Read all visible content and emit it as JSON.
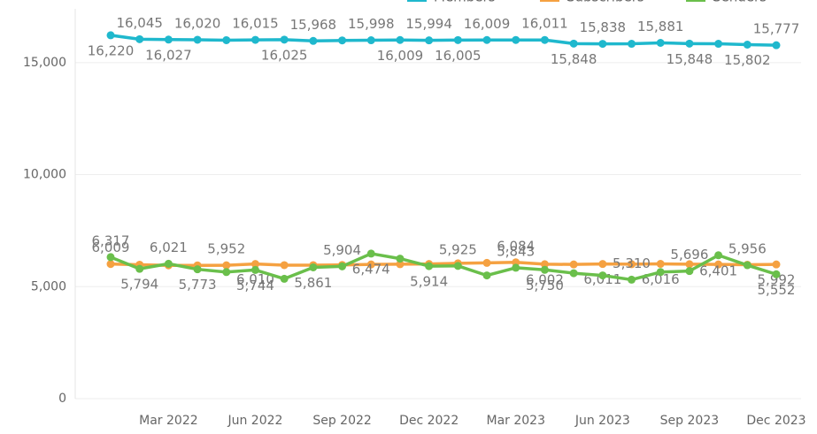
{
  "chart_data": {
    "type": "line",
    "categories": [
      null,
      null,
      "Mar 2022",
      null,
      null,
      "Jun 2022",
      null,
      null,
      "Sep 2022",
      null,
      null,
      "Dec 2022",
      null,
      null,
      "Mar 2023",
      null,
      null,
      "Jun 2023",
      null,
      null,
      "Sep 2023",
      null,
      null,
      "Dec 2023"
    ],
    "series": [
      {
        "name": "Members",
        "color": "#1fb8cd",
        "values": [
          16220,
          16045,
          16027,
          16020,
          16000,
          16015,
          16025,
          15968,
          15990,
          15998,
          16009,
          15994,
          16005,
          16009,
          16010,
          16011,
          15848,
          15838,
          15840,
          15881,
          15848,
          15840,
          15802,
          15777
        ],
        "value_labels": [
          "16,220",
          "16,045",
          "16,027",
          "16,020",
          null,
          "16,015",
          "16,025",
          "15,968",
          null,
          "15,998",
          "16,009",
          "15,994",
          "16,005",
          "16,009",
          null,
          "16,011",
          "15,848",
          "15,838",
          null,
          "15,881",
          "15,848",
          null,
          "15,802",
          "15,777"
        ]
      },
      {
        "name": "Subscribers",
        "color": "#f5a141",
        "values": [
          6009,
          5980,
          5950,
          5950,
          5952,
          6010,
          5960,
          5960,
          5970,
          5990,
          6000,
          6010,
          6040,
          6060,
          6084,
          6002,
          5990,
          6011,
          6000,
          6016,
          6000,
          5990,
          5980,
          5992
        ],
        "value_labels": [
          "6,009",
          null,
          null,
          null,
          "5,952",
          "6,010",
          null,
          null,
          null,
          null,
          null,
          null,
          null,
          null,
          "6,084",
          "6,002",
          null,
          "6,011",
          null,
          "6,016",
          null,
          null,
          null,
          "5,992"
        ]
      },
      {
        "name": "Senders",
        "color": "#6abf4b",
        "values": [
          6317,
          5794,
          6021,
          5773,
          5650,
          5744,
          5350,
          5861,
          5904,
          6474,
          6250,
          5914,
          5925,
          5500,
          5843,
          5750,
          5600,
          5500,
          5310,
          5650,
          5696,
          6401,
          5956,
          5552
        ],
        "value_labels": [
          "6,317",
          "5,794",
          "6,021",
          "5,773",
          null,
          "5,744",
          null,
          "5,861",
          "5,904",
          "6,474",
          null,
          "5,914",
          "5,925",
          null,
          "5,843",
          "5,750",
          null,
          null,
          "5,310",
          null,
          "5,696",
          "6,401",
          "5,956",
          "5,552"
        ]
      }
    ],
    "ylim": [
      0,
      17400
    ],
    "yticks": [
      {
        "value": 0,
        "label": "0"
      },
      {
        "value": 5000,
        "label": "5,000"
      },
      {
        "value": 10000,
        "label": "10,000"
      },
      {
        "value": 15000,
        "label": "15,000"
      }
    ],
    "grid": true,
    "legend": "top"
  }
}
